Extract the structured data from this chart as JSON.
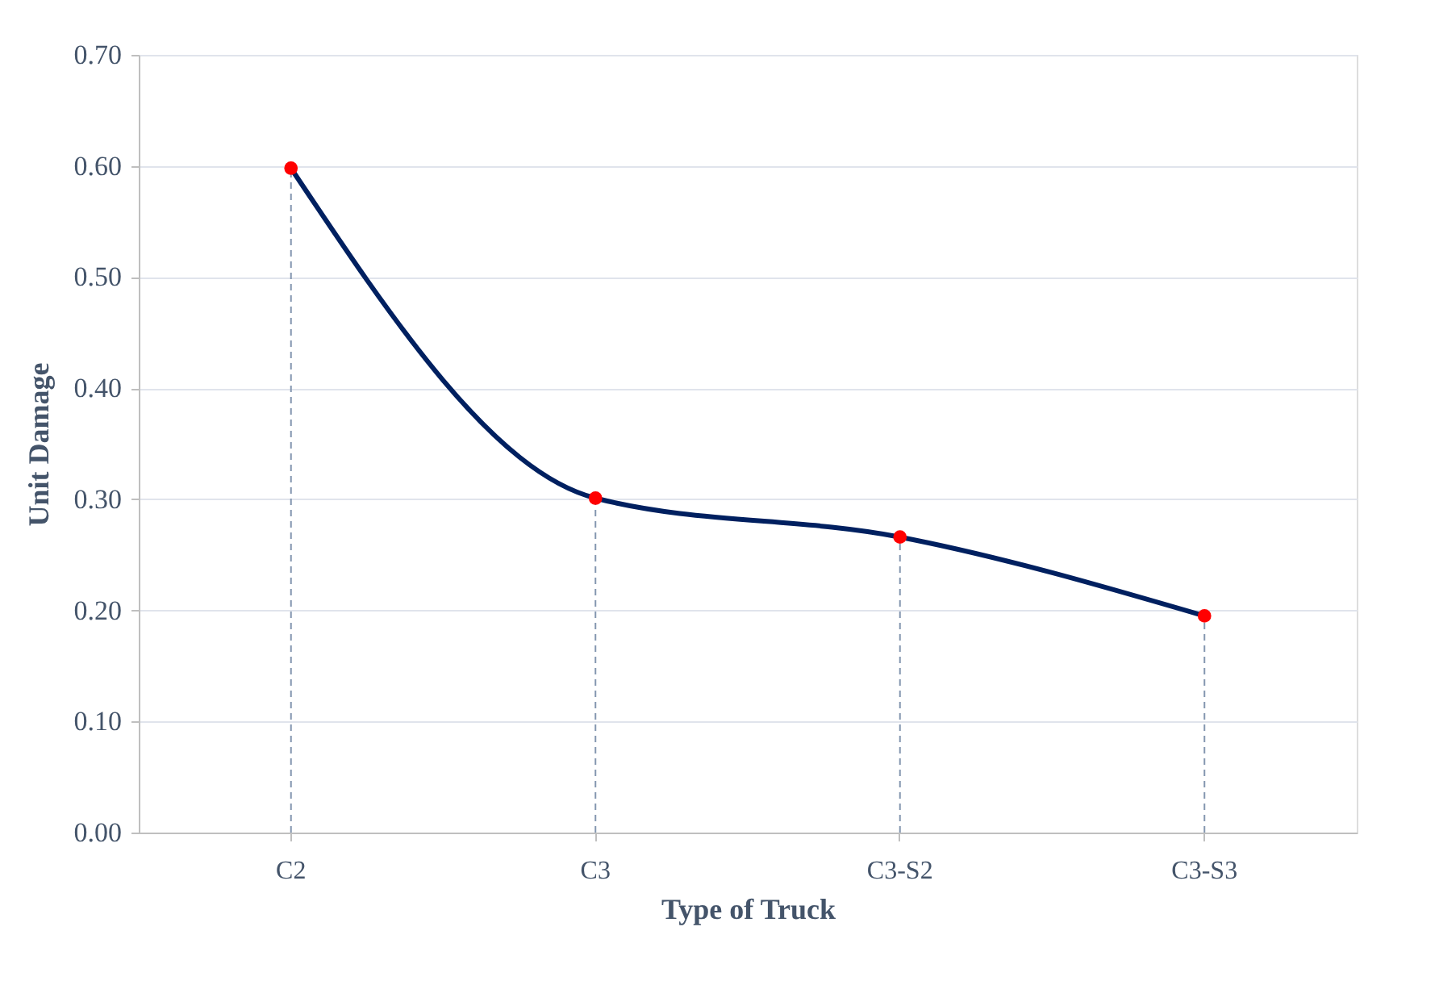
{
  "chart_data": {
    "type": "line",
    "xlabel": "Type of Truck",
    "ylabel": "Unit Damage",
    "categories": [
      "C2",
      "C3",
      "C3-S2",
      "C3-S3"
    ],
    "series": [
      {
        "color": "#002060",
        "colors": [
          "#ff0000",
          "#ff0000",
          "#ff0000",
          "#ff0000"
        ],
        "values": [
          0.598,
          0.301,
          0.266,
          0.195
        ],
        "errors": [
          [
            0.598,
            0
          ],
          [
            0.301,
            0
          ],
          [
            0.266,
            0
          ],
          [
            0.195,
            0
          ]
        ]
      }
    ],
    "ylim": [
      0,
      0.7
    ],
    "yticks": [
      {
        "value": 0,
        "label": "0.00"
      },
      {
        "value": 0.1,
        "label": "0.10"
      },
      {
        "value": 0.2,
        "label": "0.20"
      },
      {
        "value": 0.3,
        "label": "0.30"
      },
      {
        "value": 0.4,
        "label": "0.40"
      },
      {
        "value": 0.5,
        "label": "0.50"
      },
      {
        "value": 0.6,
        "label": "0.60"
      },
      {
        "value": 0.7,
        "label": "0.70"
      }
    ],
    "grid": "y",
    "marker": "circle",
    "line_style": "solid"
  }
}
